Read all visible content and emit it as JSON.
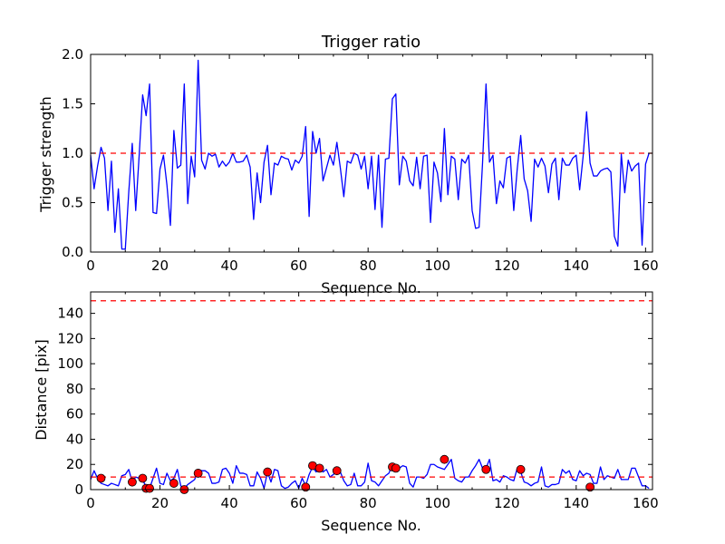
{
  "chart_data": [
    {
      "type": "line",
      "title": "Trigger ratio",
      "xlabel": "Sequence No.",
      "ylabel": "Trigger strength",
      "xlim": [
        0,
        162
      ],
      "ylim": [
        0,
        2.0
      ],
      "xticks": [
        "0",
        "20",
        "40",
        "60",
        "80",
        "100",
        "120",
        "140",
        "160"
      ],
      "yticks": [
        "0.0",
        "0.5",
        "1.0",
        "1.5",
        "2.0"
      ],
      "grid": false,
      "colors": {
        "line": "#0000ff",
        "threshold": "#ff0000"
      },
      "threshold": 1.0,
      "series": [
        {
          "values": [
            0.98,
            0.64,
            0.87,
            1.06,
            0.95,
            0.42,
            0.92,
            0.2,
            0.64,
            0.03,
            0.03,
            0.61,
            1.1,
            0.42,
            0.98,
            1.59,
            1.38,
            1.7,
            0.4,
            0.39,
            0.84,
            0.98,
            0.68,
            0.27,
            1.23,
            0.85,
            0.88,
            1.7,
            0.49,
            0.97,
            0.76,
            1.94,
            0.93,
            0.84,
            1.0,
            0.97,
            0.99,
            0.86,
            0.92,
            0.87,
            0.91,
            1.0,
            0.91,
            0.91,
            0.92,
            0.98,
            0.86,
            0.33,
            0.8,
            0.5,
            0.91,
            1.08,
            0.58,
            0.9,
            0.88,
            0.97,
            0.95,
            0.94,
            0.83,
            0.93,
            0.9,
            0.97,
            1.27,
            0.36,
            1.22,
            1.0,
            1.15,
            0.72,
            0.85,
            0.98,
            0.88,
            1.11,
            0.85,
            0.56,
            0.92,
            0.9,
            1.0,
            0.98,
            0.84,
            0.97,
            0.64,
            0.97,
            0.43,
            0.98,
            0.25,
            0.94,
            0.95,
            1.55,
            1.6,
            0.68,
            0.97,
            0.92,
            0.72,
            0.67,
            0.96,
            0.64,
            0.97,
            0.98,
            0.3,
            0.91,
            0.8,
            0.51,
            1.25,
            0.58,
            0.97,
            0.94,
            0.53,
            0.94,
            0.9,
            0.98,
            0.42,
            0.24,
            0.25,
            0.9,
            1.7,
            0.91,
            0.98,
            0.49,
            0.72,
            0.65,
            0.95,
            0.97,
            0.42,
            0.84,
            1.18,
            0.74,
            0.62,
            0.31,
            0.94,
            0.86,
            0.95,
            0.87,
            0.6,
            0.89,
            0.95,
            0.53,
            0.95,
            0.88,
            0.88,
            0.95,
            0.98,
            0.63,
            0.97,
            1.42,
            0.9,
            0.77,
            0.77,
            0.82,
            0.84,
            0.85,
            0.81,
            0.16,
            0.06,
            0.99,
            0.6,
            0.93,
            0.82,
            0.87,
            0.9,
            0.07,
            0.89,
            1.0
          ]
        }
      ]
    },
    {
      "type": "line",
      "title": "",
      "xlabel": "Sequence No.",
      "ylabel": "Distance [pix]",
      "xlim": [
        0,
        162
      ],
      "ylim": [
        0,
        157
      ],
      "xticks": [
        "0",
        "20",
        "40",
        "60",
        "80",
        "100",
        "120",
        "140",
        "160"
      ],
      "yticks": [
        "0",
        "20",
        "40",
        "60",
        "80",
        "100",
        "120",
        "140"
      ],
      "ytick_values": [
        0,
        20,
        40,
        60,
        80,
        100,
        120,
        140
      ],
      "grid": false,
      "colors": {
        "line": "#0000ff",
        "threshold": "#ff0000",
        "markers": "#ff0000"
      },
      "thresholds": [
        10,
        150
      ],
      "series": [
        {
          "values": [
            8,
            15,
            9,
            5,
            4,
            3,
            5,
            4,
            3,
            11,
            12,
            16,
            6,
            10,
            9,
            7,
            3,
            1,
            9,
            17,
            5,
            4,
            13,
            7,
            9,
            16,
            3,
            1,
            4,
            6,
            8,
            16,
            15,
            15,
            13,
            5,
            5,
            6,
            16,
            17,
            13,
            5,
            19,
            13,
            13,
            12,
            3,
            3,
            14,
            9,
            1,
            14,
            6,
            16,
            15,
            3,
            1,
            2,
            5,
            7,
            1,
            9,
            3,
            12,
            18,
            14,
            17,
            14,
            16,
            10,
            12,
            15,
            14,
            7,
            3,
            4,
            13,
            3,
            3,
            6,
            21,
            7,
            6,
            3,
            7,
            11,
            13,
            20,
            17,
            17,
            19,
            18,
            5,
            2,
            10,
            10,
            9,
            12,
            20,
            20,
            18,
            17,
            16,
            20,
            24,
            9,
            7,
            6,
            10,
            10,
            15,
            19,
            24,
            17,
            17,
            24,
            7,
            8,
            6,
            11,
            10,
            8,
            7,
            17,
            14,
            6,
            5,
            3,
            5,
            6,
            18,
            3,
            2,
            4,
            4,
            5,
            16,
            13,
            15,
            8,
            7,
            15,
            11,
            13,
            12,
            5,
            5,
            18,
            8,
            11,
            10,
            9,
            16,
            8,
            8,
            8,
            17,
            17,
            10,
            3,
            3,
            1
          ]
        }
      ],
      "markers": [
        {
          "x": 3,
          "y": 9
        },
        {
          "x": 12,
          "y": 6
        },
        {
          "x": 15,
          "y": 9
        },
        {
          "x": 16,
          "y": 1
        },
        {
          "x": 17,
          "y": 1
        },
        {
          "x": 24,
          "y": 5
        },
        {
          "x": 27,
          "y": 0
        },
        {
          "x": 31,
          "y": 13
        },
        {
          "x": 51,
          "y": 14
        },
        {
          "x": 62,
          "y": 2
        },
        {
          "x": 64,
          "y": 19
        },
        {
          "x": 66,
          "y": 17
        },
        {
          "x": 71,
          "y": 15
        },
        {
          "x": 87,
          "y": 18
        },
        {
          "x": 88,
          "y": 17
        },
        {
          "x": 102,
          "y": 24
        },
        {
          "x": 114,
          "y": 16
        },
        {
          "x": 124,
          "y": 16
        },
        {
          "x": 144,
          "y": 2
        }
      ]
    }
  ]
}
